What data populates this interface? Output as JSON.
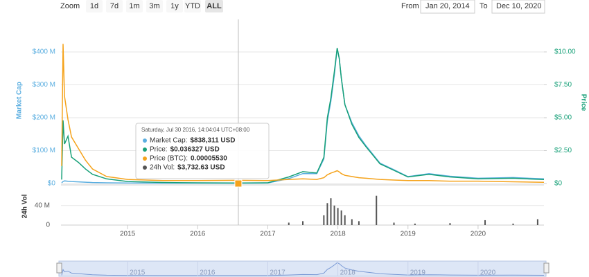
{
  "toolbar": {
    "zoom_label": "Zoom",
    "buttons": [
      "1d",
      "7d",
      "1m",
      "3m",
      "1y",
      "YTD",
      "ALL"
    ],
    "from_label": "From",
    "from": "Jan 20, 2014",
    "to_label": "To",
    "to": "Dec 10, 2020"
  },
  "tooltip": {
    "x": 2016.58,
    "title": "Saturday, Jul 30 2016, 14:04:04 UTC+08:00",
    "rows": [
      {
        "label": "Market Cap:",
        "value": "$838,311 USD"
      },
      {
        "label": "Price:",
        "value": "$0.036327 USD"
      },
      {
        "label": "Price (BTC):",
        "value": "0.00005530"
      },
      {
        "label": "24h Vol:",
        "value": "$3,732.63 USD"
      }
    ]
  },
  "chart_data": [
    {
      "type": "line",
      "ylabel": "Market Cap",
      "y2label": "Price",
      "x": [
        2014.06,
        2014.08,
        2014.1,
        2014.15,
        2014.2,
        2014.3,
        2014.4,
        2014.5,
        2014.7,
        2015.0,
        2015.5,
        2016.0,
        2016.58,
        2017.0,
        2017.3,
        2017.5,
        2017.7,
        2017.8,
        2017.85,
        2017.9,
        2017.95,
        2017.99,
        2018.02,
        2018.05,
        2018.1,
        2018.2,
        2018.3,
        2018.4,
        2018.6,
        2018.8,
        2019.0,
        2019.3,
        2019.6,
        2020.0,
        2020.5,
        2020.94
      ],
      "xlim": [
        2014.05,
        2020.94
      ],
      "xticks": [
        2015,
        2016,
        2017,
        2018,
        2019,
        2020
      ],
      "ylim": [
        0,
        442
      ],
      "yticks": [
        {
          "value": 0,
          "label": "$0"
        },
        {
          "value": 100,
          "label": "$100 M"
        },
        {
          "value": 200,
          "label": "$200 M"
        },
        {
          "value": 300,
          "label": "$300 M"
        },
        {
          "value": 400,
          "label": "$400 M"
        }
      ],
      "y2lim": [
        0,
        11.05
      ],
      "y2ticks": [
        {
          "value": 0,
          "label": "$0"
        },
        {
          "value": 2.5,
          "label": "$2.50"
        },
        {
          "value": 5,
          "label": "$5.00"
        },
        {
          "value": 7.5,
          "label": "$7.50"
        },
        {
          "value": 10,
          "label": "$10.00"
        }
      ],
      "y3lim": [
        0,
        0.0025
      ],
      "grid": true,
      "series": [
        {
          "color": "#5aaee0",
          "axis": "y",
          "values": [
            2,
            6,
            8,
            7,
            6,
            5,
            4,
            3,
            2,
            1.5,
            1,
            1,
            0.84,
            1.5,
            15,
            30,
            30,
            75,
            190,
            250,
            330,
            410,
            380,
            320,
            240,
            185,
            145,
            115,
            62,
            42,
            21,
            30,
            22,
            16,
            18,
            14
          ]
        },
        {
          "color": "#17a078",
          "axis": "y2",
          "values": [
            0.3,
            4.8,
            3.0,
            3.6,
            2.0,
            1.6,
            1.1,
            0.7,
            0.35,
            0.15,
            0.08,
            0.05,
            0.036,
            0.05,
            0.5,
            0.9,
            0.8,
            2.0,
            5.0,
            6.5,
            8.5,
            10.3,
            9.5,
            8.0,
            6.0,
            4.5,
            3.5,
            2.8,
            1.5,
            1.0,
            0.5,
            0.7,
            0.5,
            0.35,
            0.4,
            0.3
          ]
        },
        {
          "color": "#f5a31c",
          "axis": "y3",
          "values": [
            0.0003,
            0.0024,
            0.0015,
            0.0011,
            0.0008,
            0.0006,
            0.0004,
            0.00025,
            0.00012,
            7e-05,
            5e-05,
            5e-05,
            5.53e-05,
            5e-05,
            7e-05,
            8e-05,
            7e-05,
            0.0001,
            0.00015,
            0.00018,
            0.0002,
            0.00022,
            0.0002,
            0.00017,
            0.00014,
            0.00012,
            0.0001,
            9e-05,
            7e-05,
            6e-05,
            5e-05,
            5e-05,
            4e-05,
            4e-05,
            3e-05,
            2e-05
          ]
        }
      ]
    },
    {
      "type": "bar",
      "ylabel": "24h Vol",
      "color": "#555555",
      "x": [
        2016.58,
        2017.3,
        2017.5,
        2017.8,
        2017.85,
        2017.9,
        2017.95,
        2018.0,
        2018.05,
        2018.1,
        2018.2,
        2018.3,
        2018.55,
        2018.8,
        2019.1,
        2019.6,
        2020.1,
        2020.5,
        2020.85
      ],
      "values": [
        0.0037,
        5,
        8,
        20,
        45,
        55,
        40,
        35,
        30,
        20,
        12,
        8,
        60,
        5,
        3,
        4,
        10,
        3,
        12
      ],
      "ylim": [
        0,
        78
      ],
      "yticks": [
        {
          "value": 0,
          "label": "0"
        },
        {
          "value": 40,
          "label": "40 M"
        }
      ]
    }
  ]
}
